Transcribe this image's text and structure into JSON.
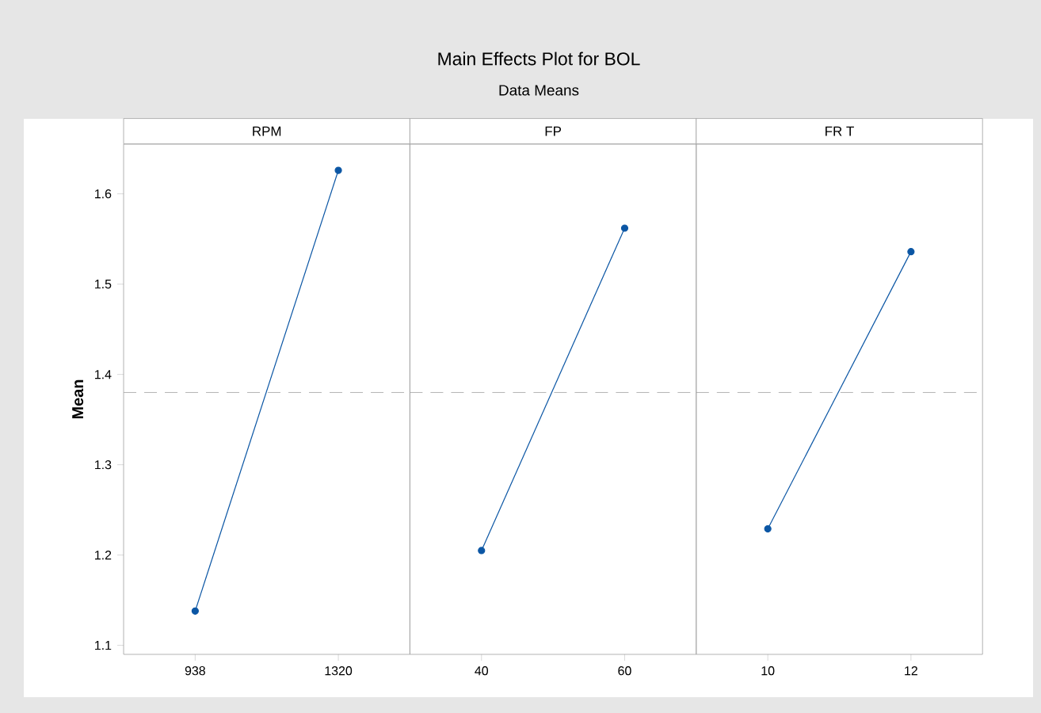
{
  "chart_data": [
    {
      "type": "line",
      "ylabel": "Mean",
      "xlabel": "RPM",
      "categories": [
        "938",
        "1320"
      ],
      "values": [
        1.138,
        1.626
      ],
      "color": "#0b56a4",
      "marker": "circle",
      "ylim": [
        1.09,
        1.655
      ],
      "yticks": [
        1.1,
        1.2,
        1.3,
        1.4,
        1.5,
        1.6
      ],
      "ref_lines": [
        {
          "axis": "y",
          "value": 1.38,
          "color": "#a0a0a0",
          "line_style": "dashed"
        }
      ]
    },
    {
      "type": "line",
      "title": "Main Effects Plot for BOL",
      "subtitle": "Data Means",
      "xlabel": "FP",
      "categories": [
        "40",
        "60"
      ],
      "values": [
        1.205,
        1.562
      ],
      "color": "#0b56a4",
      "marker": "circle",
      "ylim": [
        1.09,
        1.655
      ],
      "tick_labels": "x",
      "ref_lines": [
        {
          "axis": "y",
          "value": 1.38,
          "color": "#a0a0a0",
          "line_style": "dashed"
        }
      ]
    },
    {
      "type": "line",
      "xlabel": "FR T",
      "categories": [
        "10",
        "12"
      ],
      "values": [
        1.229,
        1.536
      ],
      "color": "#0b56a4",
      "marker": "circle",
      "ylim": [
        1.09,
        1.655
      ],
      "tick_labels": "x",
      "ref_lines": [
        {
          "axis": "y",
          "value": 1.38,
          "color": "#a0a0a0",
          "line_style": "dashed"
        }
      ]
    }
  ]
}
